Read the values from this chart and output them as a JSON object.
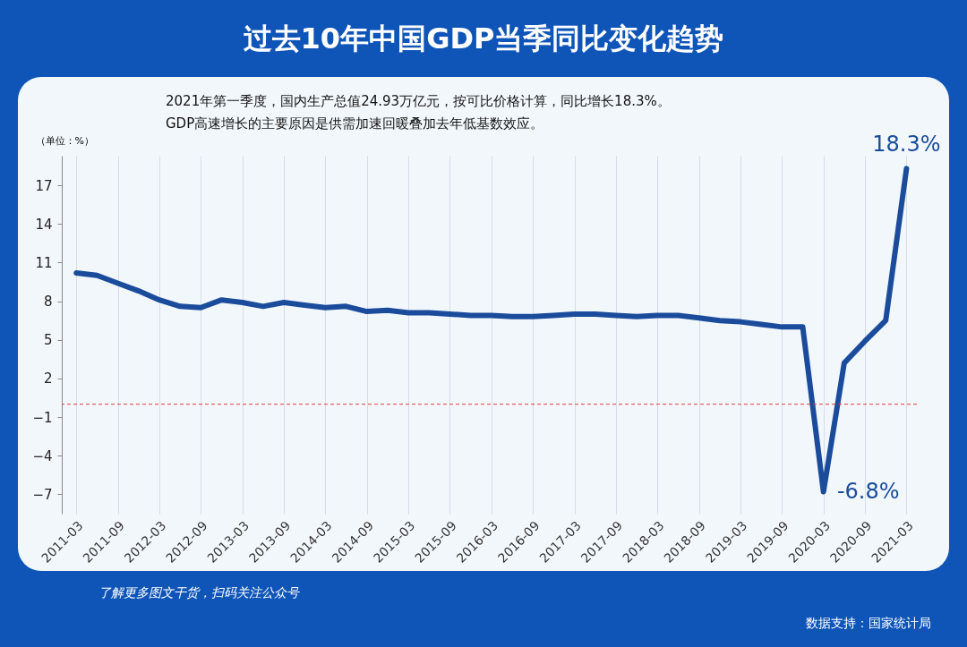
{
  "chart_data": {
    "type": "line",
    "title": "过去10年中国GDP当季同比变化趋势",
    "subtitle": "2021年第一季度，国内生产总值24.93万亿元，按可比价格计算，同比增长18.3%。\nGDP高速增长的主要原因是供需加速回暖叠加去年低基数效应。",
    "ylabel": "（单位：%）",
    "categories": [
      "2011-03",
      null,
      "2011-09",
      null,
      "2012-03",
      null,
      "2012-09",
      null,
      "2013-03",
      null,
      "2013-09",
      null,
      "2014-03",
      null,
      "2014-09",
      null,
      "2015-03",
      null,
      "2015-09",
      null,
      "2016-03",
      null,
      "2016-09",
      null,
      "2017-03",
      null,
      "2017-09",
      null,
      "2018-03",
      null,
      "2018-09",
      null,
      "2019-03",
      null,
      "2019-09",
      null,
      "2020-03",
      null,
      "2020-09",
      null,
      "2021-03"
    ],
    "series": [
      {
        "color": "#1b4c9c",
        "values": [
          10.2,
          10.0,
          9.4,
          8.8,
          8.1,
          7.6,
          7.5,
          8.1,
          7.9,
          7.6,
          7.9,
          7.7,
          7.5,
          7.6,
          7.2,
          7.3,
          7.1,
          7.1,
          7.0,
          6.9,
          6.9,
          6.8,
          6.8,
          6.9,
          7.0,
          7.0,
          6.9,
          6.8,
          6.9,
          6.9,
          6.7,
          6.5,
          6.4,
          6.2,
          6.0,
          6.0,
          -6.8,
          3.2,
          4.9,
          6.5,
          18.3
        ]
      }
    ],
    "ylim": [
      -8.5,
      19.3
    ],
    "yticks": [
      -7,
      -4,
      -1,
      2,
      5,
      8,
      11,
      14,
      17
    ],
    "grid": "x",
    "marker": "none",
    "line_style": "solid",
    "ref_lines": [
      {
        "axis": "y",
        "value": 0,
        "color": "#e03c3c",
        "line_style": "dashed"
      }
    ],
    "annotations": [
      {
        "text": "18.3%",
        "x": "2021-03",
        "y": 18.3
      },
      {
        "text": "-6.8%",
        "x": "2020-03",
        "y": -6.8
      },
      "了解更多图文干货，扫码关注公众号",
      "数据支持：国家统计局"
    ]
  }
}
